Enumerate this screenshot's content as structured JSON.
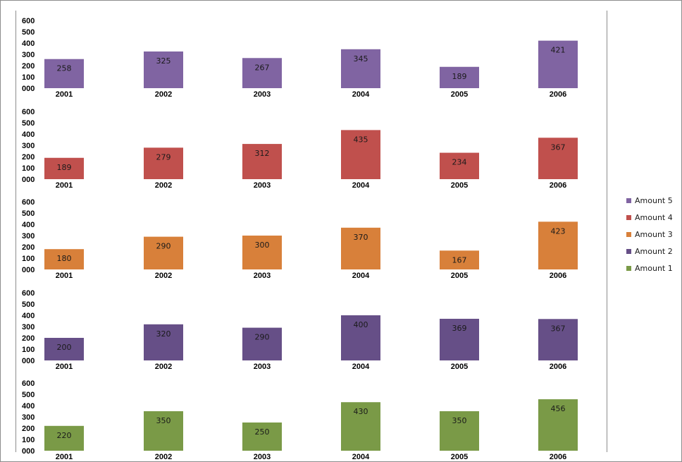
{
  "chart_data": {
    "type": "bar",
    "categories": [
      "2001",
      "2002",
      "2003",
      "2004",
      "2005",
      "2006"
    ],
    "yticks": [
      "000",
      "100",
      "200",
      "300",
      "400",
      "500",
      "600"
    ],
    "ylim": [
      0,
      600
    ],
    "grid": false,
    "legend_position": "right",
    "series": [
      {
        "name": "Amount 5",
        "color": "#8064a2",
        "values": [
          258,
          325,
          267,
          345,
          189,
          421
        ]
      },
      {
        "name": "Amount 4",
        "color": "#c0504d",
        "values": [
          189,
          279,
          312,
          435,
          234,
          367
        ]
      },
      {
        "name": "Amount 3",
        "color": "#d8803a",
        "values": [
          180,
          290,
          300,
          370,
          167,
          423
        ]
      },
      {
        "name": "Amount 2",
        "color": "#664f87",
        "values": [
          200,
          320,
          290,
          400,
          369,
          367
        ]
      },
      {
        "name": "Amount 1",
        "color": "#7a9a47",
        "values": [
          220,
          350,
          250,
          430,
          350,
          456
        ]
      }
    ]
  }
}
